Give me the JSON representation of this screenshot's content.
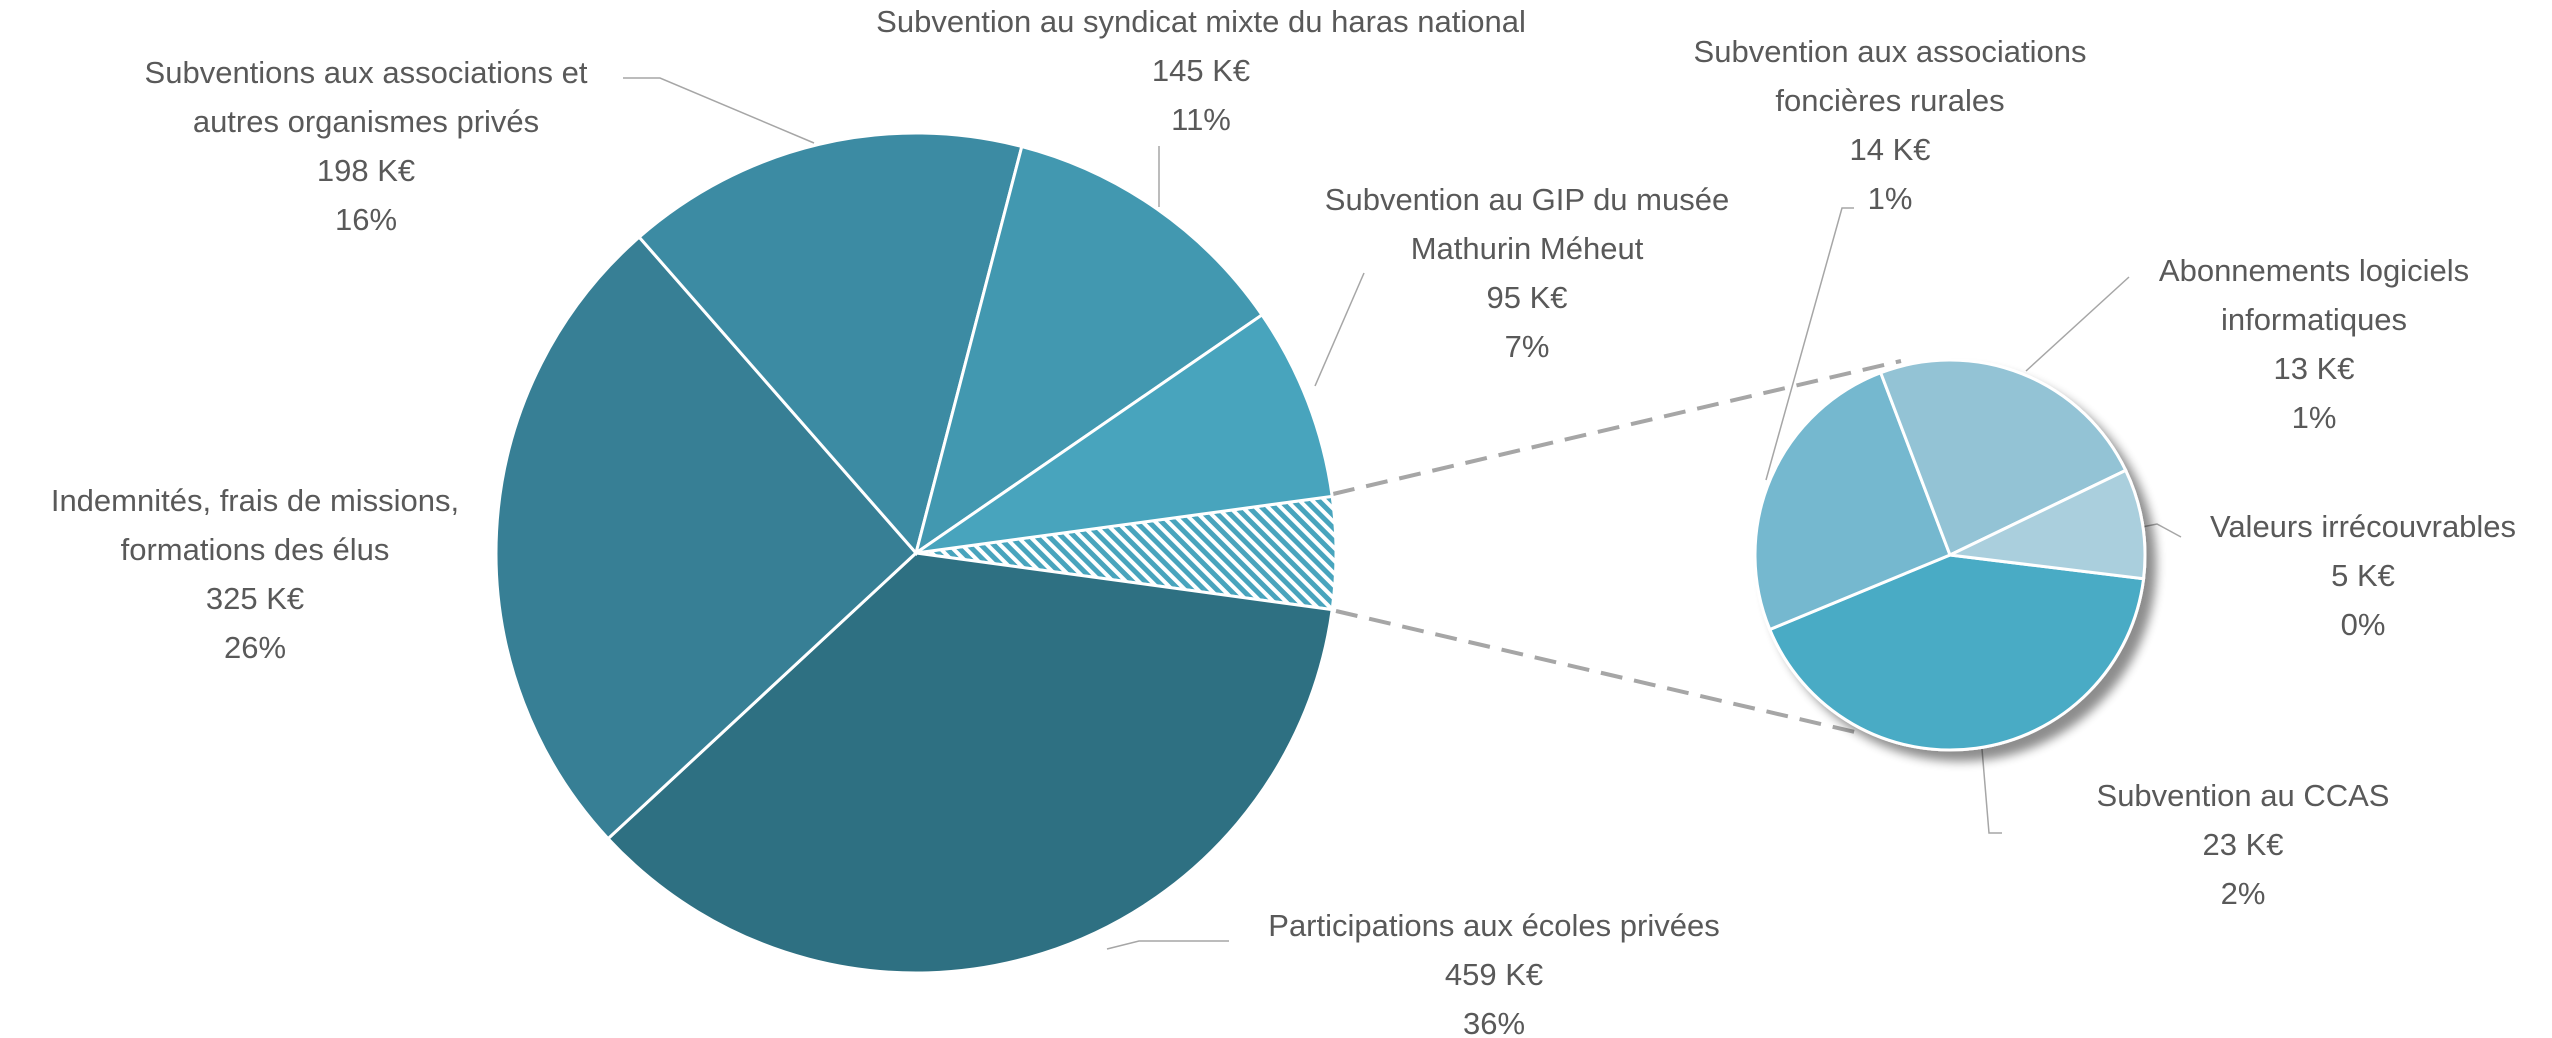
{
  "chart_data": [
    {
      "type": "pie",
      "categories": [
        [
          "Participations aux écoles privées"
        ],
        [
          "Indemnités, frais de missions,",
          "formations des élus"
        ],
        [
          "Subventions aux associations et",
          "autres organismes privés"
        ],
        [
          "Subvention au syndicat mixte du haras national"
        ],
        [
          "Subvention au GIP du musée",
          "Mathurin Méheut"
        ]
      ],
      "values": [
        459,
        325,
        198,
        145,
        95
      ],
      "value_labels": [
        "459 K€",
        "325 K€",
        "198 K€",
        "145 K€",
        "95 K€"
      ],
      "percent_labels": [
        "36%",
        "26%",
        "16%",
        "11%",
        "7%"
      ],
      "colors": [
        "#2e7082",
        "#377f95",
        "#3c8ba3",
        "#4298b0",
        "#48a4bd"
      ],
      "other_color": "#48a4bd"
    },
    {
      "type": "pie",
      "categories": [
        [
          "Subvention au CCAS"
        ],
        [
          "Subvention aux associations",
          "foncières rurales"
        ],
        [
          "Abonnements  logiciels",
          "informatiques"
        ],
        [
          "Valeurs irrécouvrables"
        ]
      ],
      "values": [
        23,
        14,
        13,
        5
      ],
      "value_labels": [
        "23 K€",
        "14 K€",
        "13 K€",
        "5 K€"
      ],
      "percent_labels": [
        "2%",
        "1%",
        "1%",
        "0%"
      ],
      "colors": [
        "#4aabc5",
        "#75b8cf",
        "#93c3d5",
        "#aacfdd"
      ]
    }
  ]
}
